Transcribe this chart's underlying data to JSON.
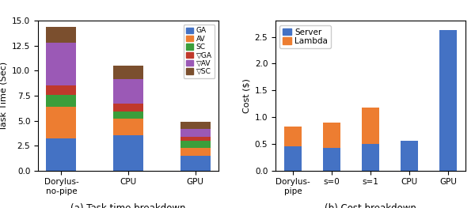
{
  "chart1": {
    "categories": [
      "Dorylus-\nno-pipe",
      "CPU",
      "GPU"
    ],
    "GA": [
      3.2,
      3.5,
      1.5
    ],
    "AV": [
      3.2,
      1.7,
      0.8
    ],
    "SC": [
      1.2,
      0.7,
      0.7
    ],
    "vGA": [
      0.9,
      0.8,
      0.4
    ],
    "vAV": [
      4.3,
      2.5,
      0.8
    ],
    "vSC": [
      1.6,
      1.3,
      0.7
    ],
    "colors": {
      "GA": "#4472c4",
      "AV": "#ed7d31",
      "SC": "#3b9e3b",
      "vGA": "#c0392b",
      "vAV": "#9b59b6",
      "vSC": "#7b4f2e"
    },
    "ylabel": "Task Time (Sec)",
    "ylim": [
      0,
      15.0
    ],
    "yticks": [
      0.0,
      2.5,
      5.0,
      7.5,
      10.0,
      12.5,
      15.0
    ],
    "title": "(a) Task time breakdown",
    "legend_labels": [
      "GA",
      "AV",
      "SC",
      "▽GA",
      "▽AV",
      "▽SC"
    ]
  },
  "chart2": {
    "categories": [
      "Dorylus-\npipe",
      "s=0",
      "s=1",
      "CPU",
      "GPU"
    ],
    "server": [
      0.46,
      0.42,
      0.5,
      0.55,
      2.62
    ],
    "lambda": [
      0.37,
      0.48,
      0.68,
      0.0,
      0.0
    ],
    "colors": {
      "server": "#4472c4",
      "lambda": "#ed7d31"
    },
    "ylabel": "Cost ($)",
    "ylim": [
      0,
      2.8
    ],
    "yticks": [
      0.0,
      0.5,
      1.0,
      1.5,
      2.0,
      2.5
    ],
    "title": "(b) Cost breakdown",
    "legend_labels": [
      "Server",
      "Lambda"
    ]
  }
}
